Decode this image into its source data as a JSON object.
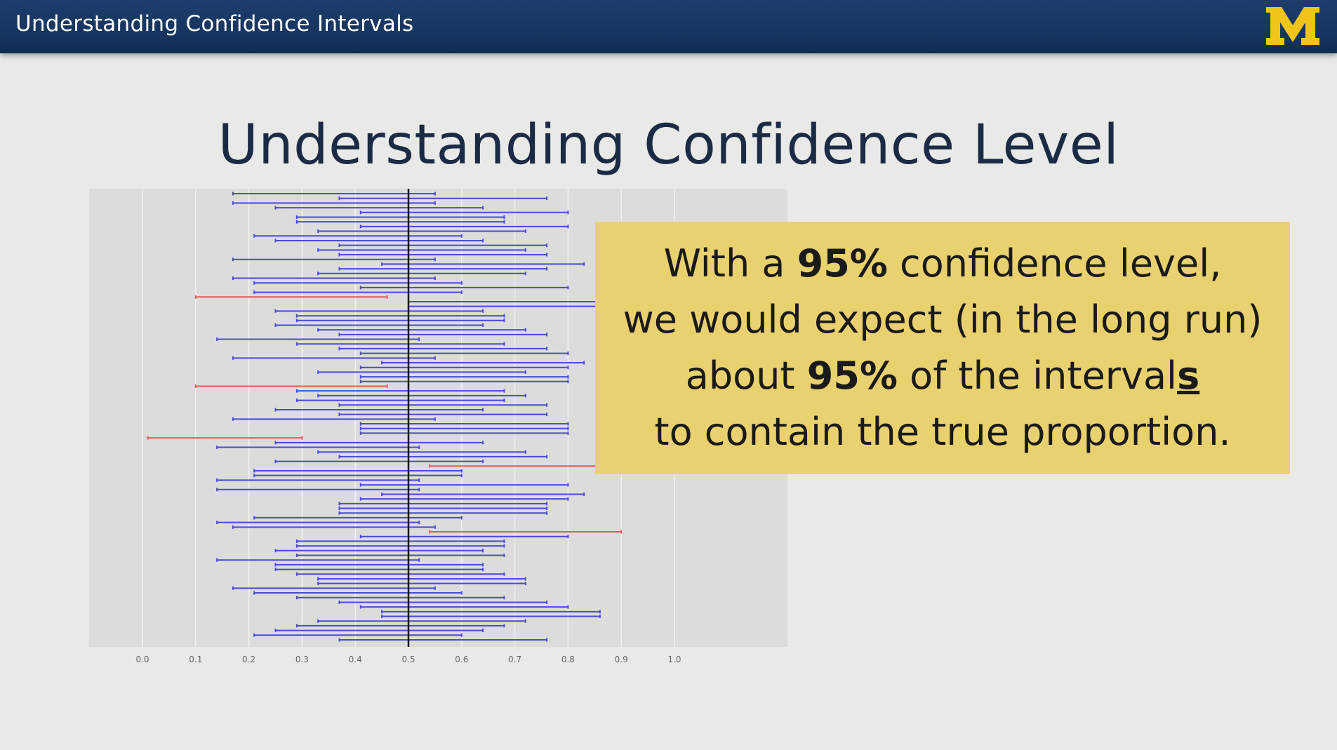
{
  "header": {
    "title": "Understanding Confidence Intervals",
    "logo_letter": "M",
    "logo_color": "#f0c419"
  },
  "slide": {
    "title": "Understanding Confidence Level"
  },
  "callout": {
    "line1_pre": "With a ",
    "line1_bold": "95%",
    "line1_post": " confidence level,",
    "line2": "we would expect (in the long run)",
    "line3_pre": "about ",
    "line3_bold": "95%",
    "line3_mid": " of the interval",
    "line3_under": "s",
    "line4": "to contain the true proportion.",
    "background": "#ead16f"
  },
  "chart_data": {
    "type": "interval",
    "xlim": [
      0.0,
      1.0
    ],
    "x_ticks": [
      "0.0",
      "0.1",
      "0.2",
      "0.3",
      "0.4",
      "0.5",
      "0.6",
      "0.7",
      "0.8",
      "0.9",
      "1.0"
    ],
    "true_proportion": 0.5,
    "grid": true,
    "colors": {
      "contains": "#4a4ad8",
      "misses": "#e05a5a",
      "reference": "#111111",
      "panel": "#dcdcdb",
      "grid": "#f2f2f2"
    },
    "intervals": [
      {
        "lower": 0.17,
        "upper": 0.55,
        "contains": true
      },
      {
        "lower": 0.37,
        "upper": 0.76,
        "contains": true
      },
      {
        "lower": 0.17,
        "upper": 0.55,
        "contains": true
      },
      {
        "lower": 0.25,
        "upper": 0.64,
        "contains": true
      },
      {
        "lower": 0.41,
        "upper": 0.8,
        "contains": true
      },
      {
        "lower": 0.29,
        "upper": 0.68,
        "contains": true
      },
      {
        "lower": 0.29,
        "upper": 0.68,
        "contains": true
      },
      {
        "lower": 0.41,
        "upper": 0.8,
        "contains": true
      },
      {
        "lower": 0.33,
        "upper": 0.72,
        "contains": true
      },
      {
        "lower": 0.21,
        "upper": 0.6,
        "contains": true
      },
      {
        "lower": 0.25,
        "upper": 0.64,
        "contains": true
      },
      {
        "lower": 0.37,
        "upper": 0.76,
        "contains": true
      },
      {
        "lower": 0.33,
        "upper": 0.72,
        "contains": true
      },
      {
        "lower": 0.37,
        "upper": 0.76,
        "contains": true
      },
      {
        "lower": 0.17,
        "upper": 0.55,
        "contains": true
      },
      {
        "lower": 0.45,
        "upper": 0.83,
        "contains": true
      },
      {
        "lower": 0.37,
        "upper": 0.76,
        "contains": true
      },
      {
        "lower": 0.33,
        "upper": 0.72,
        "contains": true
      },
      {
        "lower": 0.17,
        "upper": 0.55,
        "contains": true
      },
      {
        "lower": 0.21,
        "upper": 0.6,
        "contains": true
      },
      {
        "lower": 0.41,
        "upper": 0.8,
        "contains": true
      },
      {
        "lower": 0.21,
        "upper": 0.6,
        "contains": true
      },
      {
        "lower": 0.1,
        "upper": 0.46,
        "contains": false
      },
      {
        "lower": 0.5,
        "upper": 0.88,
        "contains": true
      },
      {
        "lower": 0.5,
        "upper": 0.88,
        "contains": true
      },
      {
        "lower": 0.25,
        "upper": 0.64,
        "contains": true
      },
      {
        "lower": 0.29,
        "upper": 0.68,
        "contains": true
      },
      {
        "lower": 0.29,
        "upper": 0.68,
        "contains": true
      },
      {
        "lower": 0.25,
        "upper": 0.64,
        "contains": true
      },
      {
        "lower": 0.33,
        "upper": 0.72,
        "contains": true
      },
      {
        "lower": 0.37,
        "upper": 0.76,
        "contains": true
      },
      {
        "lower": 0.14,
        "upper": 0.52,
        "contains": true
      },
      {
        "lower": 0.29,
        "upper": 0.68,
        "contains": true
      },
      {
        "lower": 0.37,
        "upper": 0.76,
        "contains": true
      },
      {
        "lower": 0.41,
        "upper": 0.8,
        "contains": true
      },
      {
        "lower": 0.17,
        "upper": 0.55,
        "contains": true
      },
      {
        "lower": 0.45,
        "upper": 0.83,
        "contains": true
      },
      {
        "lower": 0.41,
        "upper": 0.8,
        "contains": true
      },
      {
        "lower": 0.33,
        "upper": 0.72,
        "contains": true
      },
      {
        "lower": 0.41,
        "upper": 0.8,
        "contains": true
      },
      {
        "lower": 0.41,
        "upper": 0.8,
        "contains": true
      },
      {
        "lower": 0.1,
        "upper": 0.46,
        "contains": false
      },
      {
        "lower": 0.29,
        "upper": 0.68,
        "contains": true
      },
      {
        "lower": 0.33,
        "upper": 0.72,
        "contains": true
      },
      {
        "lower": 0.29,
        "upper": 0.68,
        "contains": true
      },
      {
        "lower": 0.37,
        "upper": 0.76,
        "contains": true
      },
      {
        "lower": 0.25,
        "upper": 0.64,
        "contains": true
      },
      {
        "lower": 0.37,
        "upper": 0.76,
        "contains": true
      },
      {
        "lower": 0.17,
        "upper": 0.55,
        "contains": true
      },
      {
        "lower": 0.41,
        "upper": 0.8,
        "contains": true
      },
      {
        "lower": 0.41,
        "upper": 0.8,
        "contains": true
      },
      {
        "lower": 0.41,
        "upper": 0.8,
        "contains": true
      },
      {
        "lower": 0.01,
        "upper": 0.3,
        "contains": false
      },
      {
        "lower": 0.25,
        "upper": 0.64,
        "contains": true
      },
      {
        "lower": 0.14,
        "upper": 0.52,
        "contains": true
      },
      {
        "lower": 0.33,
        "upper": 0.72,
        "contains": true
      },
      {
        "lower": 0.37,
        "upper": 0.76,
        "contains": true
      },
      {
        "lower": 0.25,
        "upper": 0.64,
        "contains": true
      },
      {
        "lower": 0.54,
        "upper": 0.9,
        "contains": false
      },
      {
        "lower": 0.21,
        "upper": 0.6,
        "contains": true
      },
      {
        "lower": 0.21,
        "upper": 0.6,
        "contains": true
      },
      {
        "lower": 0.14,
        "upper": 0.52,
        "contains": true
      },
      {
        "lower": 0.41,
        "upper": 0.8,
        "contains": true
      },
      {
        "lower": 0.14,
        "upper": 0.52,
        "contains": true
      },
      {
        "lower": 0.45,
        "upper": 0.83,
        "contains": true
      },
      {
        "lower": 0.41,
        "upper": 0.8,
        "contains": true
      },
      {
        "lower": 0.37,
        "upper": 0.76,
        "contains": true
      },
      {
        "lower": 0.37,
        "upper": 0.76,
        "contains": true
      },
      {
        "lower": 0.37,
        "upper": 0.76,
        "contains": true
      },
      {
        "lower": 0.21,
        "upper": 0.6,
        "contains": true
      },
      {
        "lower": 0.14,
        "upper": 0.52,
        "contains": true
      },
      {
        "lower": 0.17,
        "upper": 0.55,
        "contains": true
      },
      {
        "lower": 0.54,
        "upper": 0.9,
        "contains": false
      },
      {
        "lower": 0.41,
        "upper": 0.8,
        "contains": true
      },
      {
        "lower": 0.29,
        "upper": 0.68,
        "contains": true
      },
      {
        "lower": 0.29,
        "upper": 0.68,
        "contains": true
      },
      {
        "lower": 0.25,
        "upper": 0.64,
        "contains": true
      },
      {
        "lower": 0.29,
        "upper": 0.68,
        "contains": true
      },
      {
        "lower": 0.14,
        "upper": 0.52,
        "contains": true
      },
      {
        "lower": 0.25,
        "upper": 0.64,
        "contains": true
      },
      {
        "lower": 0.25,
        "upper": 0.64,
        "contains": true
      },
      {
        "lower": 0.29,
        "upper": 0.68,
        "contains": true
      },
      {
        "lower": 0.33,
        "upper": 0.72,
        "contains": true
      },
      {
        "lower": 0.33,
        "upper": 0.72,
        "contains": true
      },
      {
        "lower": 0.17,
        "upper": 0.55,
        "contains": true
      },
      {
        "lower": 0.21,
        "upper": 0.6,
        "contains": true
      },
      {
        "lower": 0.29,
        "upper": 0.68,
        "contains": true
      },
      {
        "lower": 0.37,
        "upper": 0.76,
        "contains": true
      },
      {
        "lower": 0.41,
        "upper": 0.8,
        "contains": true
      },
      {
        "lower": 0.45,
        "upper": 0.86,
        "contains": true
      },
      {
        "lower": 0.45,
        "upper": 0.86,
        "contains": true
      },
      {
        "lower": 0.33,
        "upper": 0.72,
        "contains": true
      },
      {
        "lower": 0.29,
        "upper": 0.68,
        "contains": true
      },
      {
        "lower": 0.25,
        "upper": 0.64,
        "contains": true
      },
      {
        "lower": 0.21,
        "upper": 0.6,
        "contains": true
      },
      {
        "lower": 0.37,
        "upper": 0.76,
        "contains": true
      }
    ]
  }
}
